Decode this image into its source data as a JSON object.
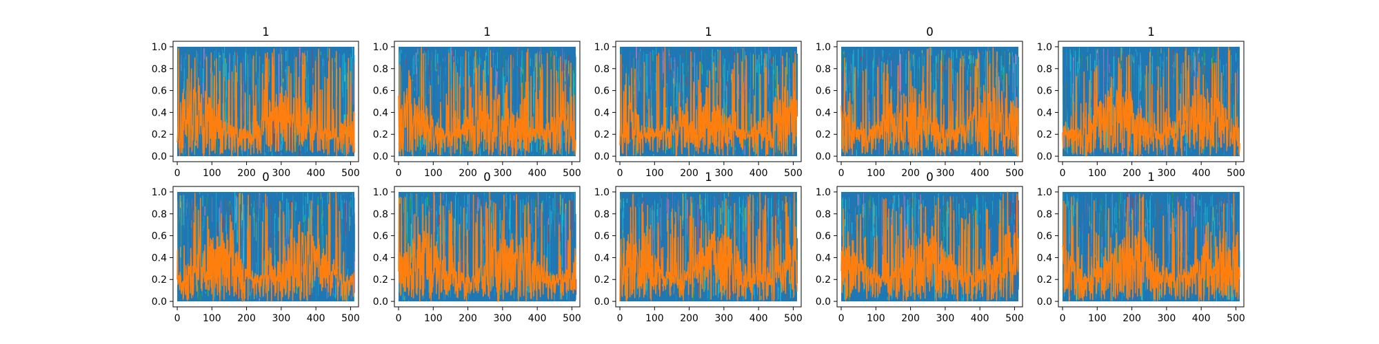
{
  "chart_data": {
    "type": "line",
    "layout": {
      "rows": 2,
      "cols": 5
    },
    "xlim": [
      -12,
      523
    ],
    "ylim": [
      -0.05,
      1.05
    ],
    "x_ticks": [
      0,
      100,
      200,
      300,
      400,
      500
    ],
    "y_ticks": [
      0.0,
      0.2,
      0.4,
      0.6,
      0.8,
      1.0
    ],
    "x_tick_labels": [
      "0",
      "100",
      "200",
      "300",
      "400",
      "500"
    ],
    "y_tick_labels": [
      "0.0",
      "0.2",
      "0.4",
      "0.6",
      "0.8",
      "1.0"
    ],
    "x_range": [
      0,
      511
    ],
    "series_count_visible": "many overlapping series; topmost drawn in orange",
    "grid": false,
    "legend": "none",
    "colors": {
      "topmost_series": "#ff7f0e",
      "dominant_background_series": "#1f77b4",
      "other_series": [
        "#17becf",
        "#2ca02c",
        "#bcbd22",
        "#9467bd",
        "#e377c2",
        "#d62728",
        "#8c564b",
        "#7f7f7f"
      ]
    },
    "panels": [
      {
        "title": "1"
      },
      {
        "title": "1"
      },
      {
        "title": "1"
      },
      {
        "title": "0"
      },
      {
        "title": "1"
      },
      {
        "title": "0"
      },
      {
        "title": "0"
      },
      {
        "title": "1"
      },
      {
        "title": "0"
      },
      {
        "title": "1"
      }
    ]
  }
}
